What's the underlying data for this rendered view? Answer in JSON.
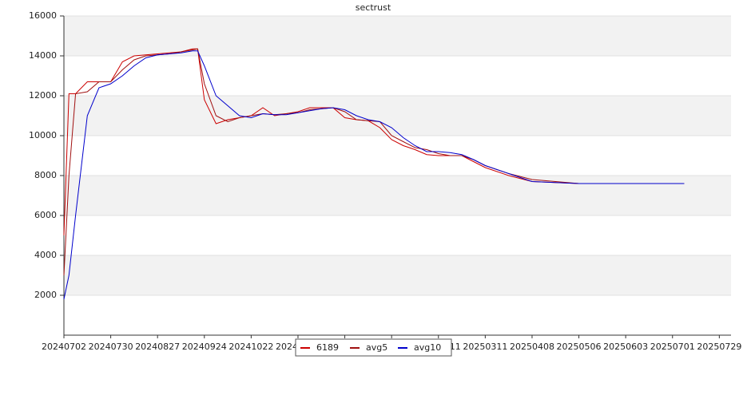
{
  "chart_data": {
    "type": "line",
    "title": "sectrust",
    "x": [
      "20240702",
      "20240705",
      "20240709",
      "20240716",
      "20240723",
      "20240730",
      "20240806",
      "20240813",
      "20240820",
      "20240827",
      "20240903",
      "20240910",
      "20240917",
      "20240920",
      "20240924",
      "20241001",
      "20241008",
      "20241015",
      "20241022",
      "20241029",
      "20241105",
      "20241112",
      "20241119",
      "20241126",
      "20241203",
      "20241210",
      "20241217",
      "20241224",
      "20241231",
      "20250107",
      "20250114",
      "20250121",
      "20250128",
      "20250204",
      "20250211",
      "20250218",
      "20250225",
      "20250304",
      "20250311",
      "20250325",
      "20250408",
      "20250506",
      "20250603",
      "20250701",
      "20250708"
    ],
    "series": [
      {
        "name": "6189",
        "color": "#cc0000",
        "values": [
          5000,
          12100,
          12100,
          12700,
          12700,
          12700,
          13700,
          14000,
          14050,
          14100,
          14150,
          14200,
          14350,
          14350,
          11800,
          10600,
          10800,
          10900,
          11000,
          11400,
          11000,
          11100,
          11200,
          11400,
          11400,
          11400,
          10900,
          10800,
          10750,
          10400,
          9800,
          9500,
          9300,
          9050,
          9000,
          9000,
          9000,
          8700,
          8400,
          8000,
          7700,
          7600,
          7600,
          7600,
          7600
        ]
      },
      {
        "name": "avg5",
        "color": "#a01010",
        "values": [
          3000,
          8000,
          12100,
          12200,
          12700,
          12700,
          13300,
          13800,
          14000,
          14050,
          14100,
          14200,
          14300,
          14350,
          12600,
          11000,
          10700,
          10900,
          11000,
          11100,
          11050,
          11100,
          11150,
          11300,
          11350,
          11400,
          11200,
          10800,
          10750,
          10700,
          10000,
          9700,
          9400,
          9300,
          9100,
          9000,
          9000,
          8800,
          8500,
          8100,
          7800,
          7600,
          7600,
          7600,
          7600
        ]
      },
      {
        "name": "avg10",
        "color": "#0000cc",
        "values": [
          1800,
          3000,
          6000,
          11000,
          12400,
          12600,
          13000,
          13500,
          13900,
          14050,
          14100,
          14150,
          14250,
          14250,
          13500,
          12000,
          11500,
          11000,
          10900,
          11100,
          11050,
          11050,
          11150,
          11250,
          11350,
          11400,
          11300,
          11000,
          10800,
          10700,
          10400,
          9900,
          9500,
          9200,
          9200,
          9150,
          9050,
          8800,
          8500,
          8100,
          7700,
          7600,
          7600,
          7600,
          7600
        ]
      }
    ],
    "xlim": [
      "20240702",
      "20250805"
    ],
    "xticks": [
      "20240702",
      "20240730",
      "20240827",
      "20240924",
      "20241022",
      "20241119",
      "20241217",
      "20250114",
      "20250211",
      "20250311",
      "20250408",
      "20250506",
      "20250603",
      "20250701",
      "20250729"
    ],
    "ylim": [
      0,
      16000
    ],
    "yticks": [
      2000,
      4000,
      6000,
      8000,
      10000,
      12000,
      14000,
      16000
    ],
    "grid": true
  }
}
